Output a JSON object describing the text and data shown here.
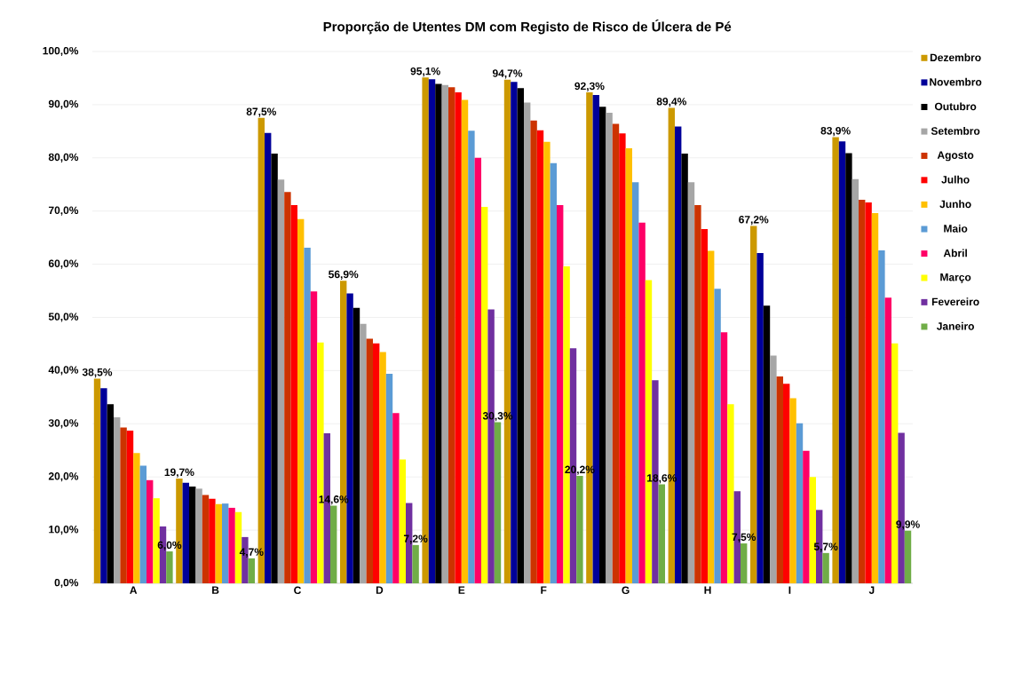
{
  "chart_data": {
    "type": "bar",
    "title": "Proporção de Utentes DM com Registo de Risco de Úlcera de Pé",
    "categories": [
      "A",
      "B",
      "C",
      "D",
      "E",
      "F",
      "G",
      "H",
      "I",
      "J"
    ],
    "ylim": [
      0,
      100
    ],
    "yticks": [
      {
        "value": 0,
        "label": "0,0%"
      },
      {
        "value": 10,
        "label": "10,0%"
      },
      {
        "value": 20,
        "label": "20,0%"
      },
      {
        "value": 30,
        "label": "30,0%"
      },
      {
        "value": 40,
        "label": "40,0%"
      },
      {
        "value": 50,
        "label": "50,0%"
      },
      {
        "value": 60,
        "label": "60,0%"
      },
      {
        "value": 70,
        "label": "70,0%"
      },
      {
        "value": 80,
        "label": "80,0%"
      },
      {
        "value": 90,
        "label": "90,0%"
      },
      {
        "value": 100,
        "label": "100,0%"
      }
    ],
    "grid": "y",
    "legend": "right",
    "series": [
      {
        "name": "Dezembro",
        "color": "#cc9900",
        "values": [
          38.5,
          19.7,
          87.5,
          56.9,
          95.1,
          94.7,
          92.3,
          89.4,
          67.2,
          83.9
        ],
        "value_labels": [
          "38,5%",
          "19,7%",
          "87,5%",
          "56,9%",
          "95,1%",
          "94,7%",
          "92,3%",
          "89,4%",
          "67,2%",
          "83,9%"
        ]
      },
      {
        "name": "Novembro",
        "color": "#000099",
        "values": [
          36.7,
          18.9,
          84.7,
          54.5,
          94.8,
          94.3,
          91.8,
          85.9,
          62.1,
          83.1
        ]
      },
      {
        "name": "Outubro",
        "color": "#000000",
        "values": [
          33.7,
          18.2,
          80.8,
          51.8,
          93.9,
          93.1,
          89.6,
          80.8,
          52.2,
          80.9
        ]
      },
      {
        "name": "Setembro",
        "color": "#a6a6a6",
        "values": [
          31.2,
          17.8,
          75.9,
          48.8,
          93.7,
          90.4,
          88.5,
          75.4,
          42.8,
          76.0
        ]
      },
      {
        "name": "Agosto",
        "color": "#cc3300",
        "values": [
          29.3,
          16.6,
          73.6,
          46.0,
          93.3,
          87.0,
          86.4,
          71.1,
          38.9,
          72.1
        ]
      },
      {
        "name": "Julho",
        "color": "#ff0000",
        "values": [
          28.7,
          15.9,
          71.1,
          45.1,
          92.3,
          85.2,
          84.6,
          66.6,
          37.5,
          71.6
        ]
      },
      {
        "name": "Junho",
        "color": "#ffc000",
        "values": [
          24.5,
          14.9,
          68.5,
          43.5,
          90.9,
          83.0,
          81.8,
          62.5,
          34.8,
          69.6
        ]
      },
      {
        "name": "Maio",
        "color": "#5b9bd5",
        "values": [
          22.1,
          15.0,
          63.1,
          39.4,
          85.1,
          79.0,
          75.4,
          55.4,
          30.1,
          62.6
        ]
      },
      {
        "name": "Abril",
        "color": "#ff0066",
        "values": [
          19.4,
          14.2,
          54.9,
          32.0,
          80.0,
          71.1,
          67.8,
          47.2,
          24.9,
          53.7
        ]
      },
      {
        "name": "Março",
        "color": "#ffff00",
        "values": [
          16.0,
          13.4,
          45.3,
          23.3,
          70.8,
          59.6,
          57.0,
          33.7,
          20.0,
          45.1
        ]
      },
      {
        "name": "Fevereiro",
        "color": "#7030a0",
        "values": [
          10.7,
          8.7,
          28.2,
          15.1,
          51.5,
          44.2,
          38.2,
          17.3,
          13.8,
          28.3
        ]
      },
      {
        "name": "Janeiro",
        "color": "#70ad47",
        "values": [
          6.0,
          4.7,
          14.6,
          7.2,
          30.3,
          20.2,
          18.6,
          7.5,
          5.7,
          9.9
        ],
        "value_labels": [
          "6,0%",
          "4,7%",
          "14,6%",
          "7,2%",
          "30,3%",
          "20,2%",
          "18,6%",
          "7,5%",
          "5,7%",
          "9,9%"
        ]
      }
    ]
  }
}
